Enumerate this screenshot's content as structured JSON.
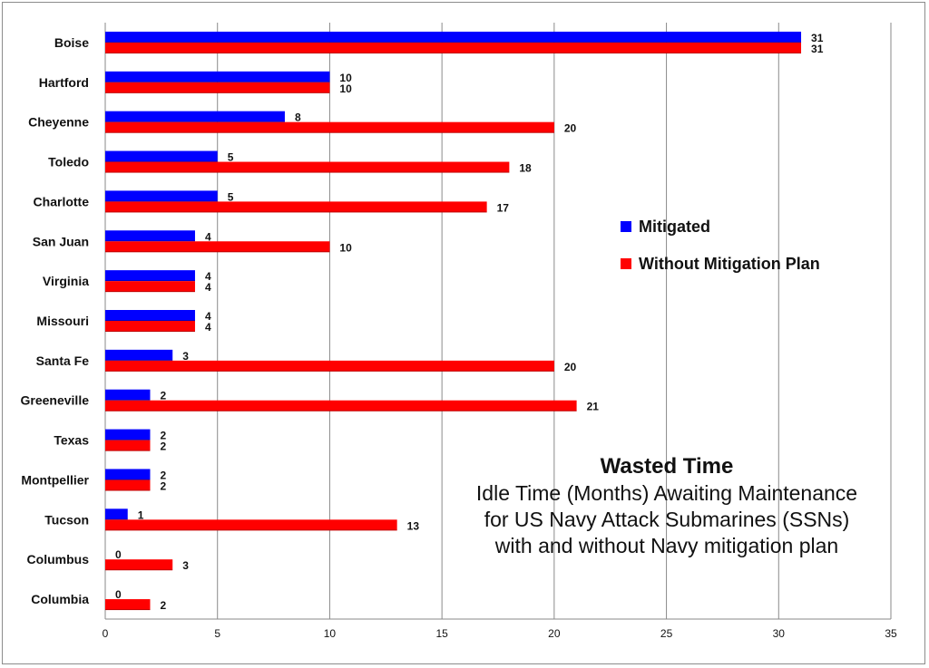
{
  "chart_data": {
    "type": "bar",
    "orientation": "horizontal",
    "categories": [
      "Boise",
      "Hartford",
      "Cheyenne",
      "Toledo",
      "Charlotte",
      "San Juan",
      "Virginia",
      "Missouri",
      "Santa Fe",
      "Greeneville",
      "Texas",
      "Montpellier",
      "Tucson",
      "Columbus",
      "Columbia"
    ],
    "series": [
      {
        "name": "Mitigated",
        "color": "#0000ff",
        "values": [
          31,
          10,
          8,
          5,
          5,
          4,
          4,
          4,
          3,
          2,
          2,
          2,
          1,
          0,
          0
        ]
      },
      {
        "name": "Without Mitigation Plan",
        "color": "#ff0000",
        "values": [
          31,
          10,
          20,
          18,
          17,
          10,
          4,
          4,
          20,
          21,
          2,
          2,
          13,
          3,
          2
        ]
      }
    ],
    "xlim": [
      0,
      35
    ],
    "xticks": [
      0,
      5,
      10,
      15,
      20,
      25,
      30,
      35
    ],
    "grid": true,
    "legend_position": "right",
    "title": "Wasted Time",
    "subtitle_lines": [
      "Idle Time (Months) Awaiting Maintenance",
      "for US Navy Attack Submarines (SSNs)",
      "with and without Navy mitigation plan"
    ]
  }
}
